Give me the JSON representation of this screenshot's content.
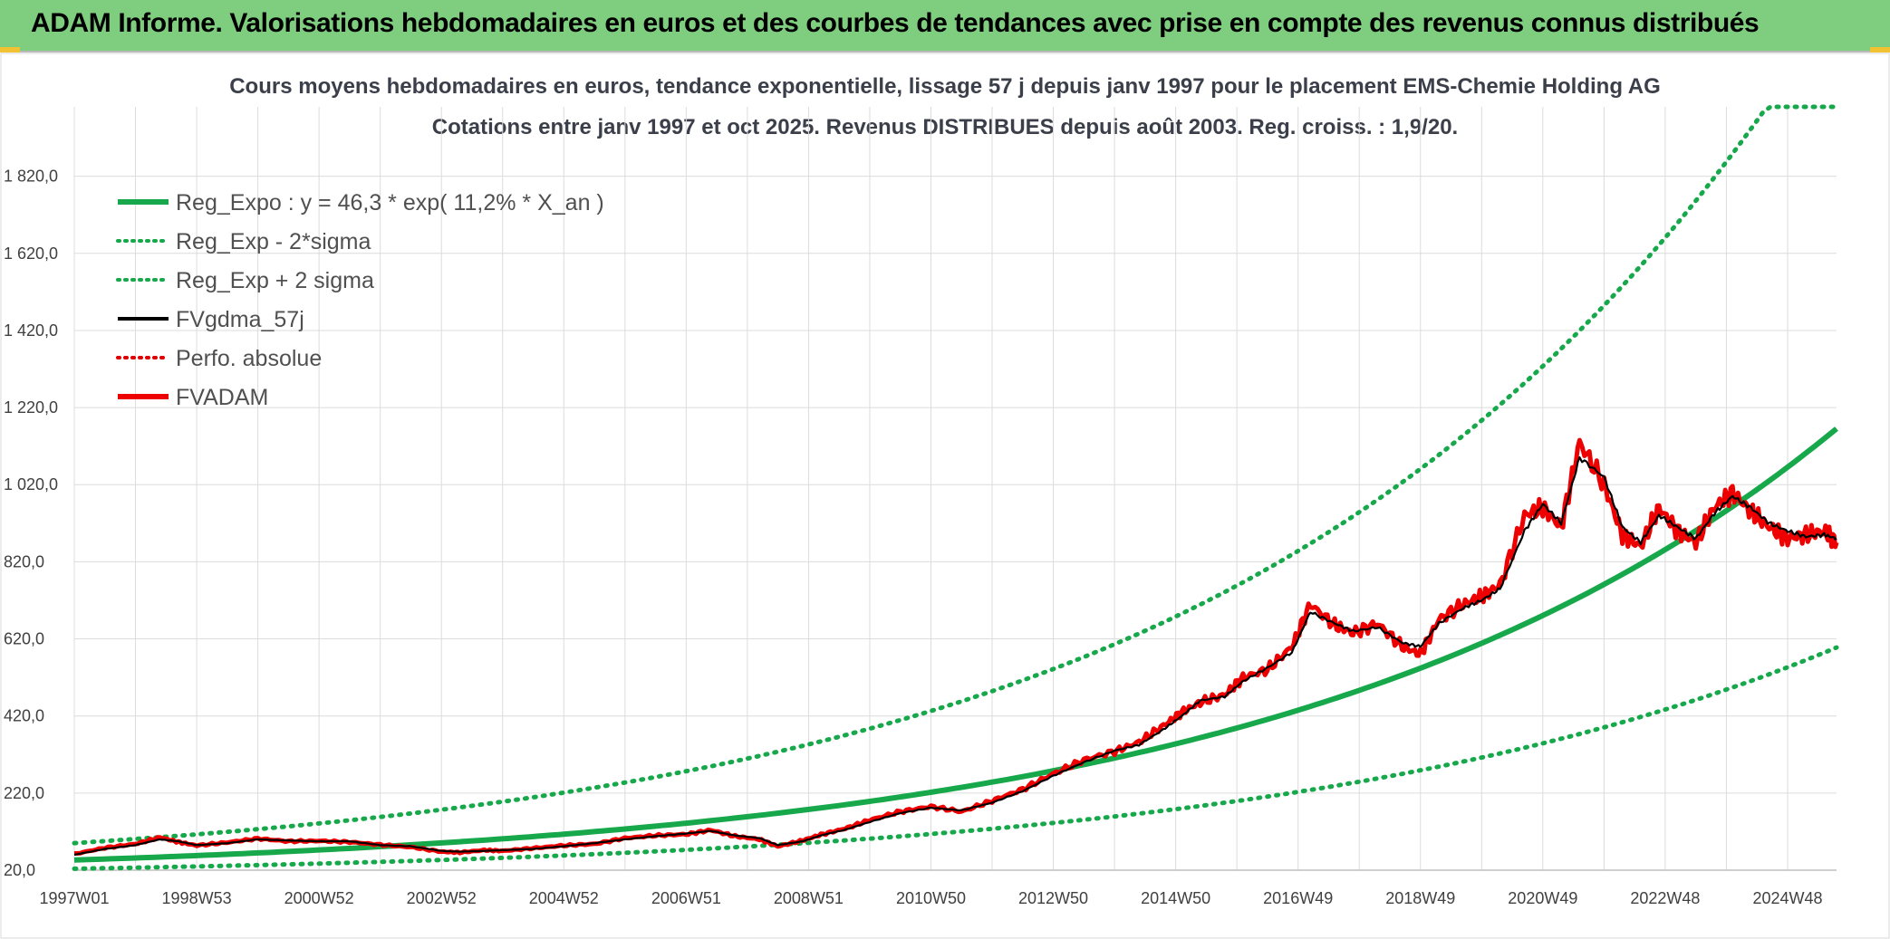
{
  "header": {
    "title": "ADAM Informe. Valorisations hebdomadaires en euros et des courbes de tendances avec prise en compte des revenus connus distribués"
  },
  "chart_data": {
    "type": "line",
    "title": "Cours moyens hebdomadaires en euros, tendance exponentielle, lissage 57 j depuis janv 1997 pour le placement EMS-Chemie Holding AG",
    "subtitle": "Cotations entre janv 1997 et oct 2025. Revenus DISTRIBUES depuis août 2003. Reg. croiss. : 1,9/20.",
    "xlabel": "",
    "ylabel": "",
    "x_range": [
      1997.0,
      2025.8
    ],
    "ylim": [
      20,
      2000
    ],
    "y_ticks": [
      "20,0",
      "220,0",
      "420,0",
      "620,0",
      "820,0",
      "1 020,0",
      "1 220,0",
      "1 420,0",
      "1 620,0",
      "1 820,0"
    ],
    "x_ticks": [
      {
        "label": "1997W01",
        "x": 1997.0
      },
      {
        "label": "1998W53",
        "x": 1999.0
      },
      {
        "label": "2000W52",
        "x": 2001.0
      },
      {
        "label": "2002W52",
        "x": 2003.0
      },
      {
        "label": "2004W52",
        "x": 2005.0
      },
      {
        "label": "2006W51",
        "x": 2007.0
      },
      {
        "label": "2008W51",
        "x": 2009.0
      },
      {
        "label": "2010W50",
        "x": 2011.0
      },
      {
        "label": "2012W50",
        "x": 2013.0
      },
      {
        "label": "2014W50",
        "x": 2015.0
      },
      {
        "label": "2016W49",
        "x": 2017.0
      },
      {
        "label": "2018W49",
        "x": 2019.0
      },
      {
        "label": "2020W49",
        "x": 2021.0
      },
      {
        "label": "2022W48",
        "x": 2023.0
      },
      {
        "label": "2024W48",
        "x": 2025.0
      }
    ],
    "grid": true,
    "legend_position": "top-left",
    "regression": {
      "a": 46.3,
      "rate": 0.112,
      "x0": 1997.0,
      "sigma_factor": 1.95
    },
    "series": [
      {
        "name": "Reg_Expo : y = 46,3 * exp( 11,2% *  X_an )",
        "color": "#17a84b",
        "style": "solid",
        "x": [
          1997.0,
          1998.0,
          1999.0,
          2000.0,
          2001.0,
          2002.0,
          2003.0,
          2004.0,
          2005.0,
          2006.0,
          2007.0,
          2008.0,
          2009.0,
          2010.0,
          2011.0,
          2012.0,
          2013.0,
          2014.0,
          2015.0,
          2016.0,
          2017.0,
          2018.0,
          2019.0,
          2020.0,
          2021.0,
          2022.0,
          2023.0,
          2024.0,
          2025.0,
          2025.8
        ],
        "values": [
          46.3,
          51.8,
          57.9,
          64.8,
          72.5,
          81.1,
          90.7,
          101.4,
          113.4,
          126.8,
          141.8,
          158.7,
          177.5,
          198.5,
          222.0,
          248.3,
          277.7,
          310.6,
          347.4,
          388.6,
          434.6,
          486.1,
          543.7,
          608.1,
          680.2,
          760.8,
          850.9,
          951.7,
          1064.5,
          1164.0
        ]
      },
      {
        "name": "Reg_Exp - 2*sigma",
        "color": "#17a84b",
        "style": "dotted",
        "x": [
          1997.0,
          1998.0,
          1999.0,
          2000.0,
          2001.0,
          2002.0,
          2003.0,
          2004.0,
          2005.0,
          2006.0,
          2007.0,
          2008.0,
          2009.0,
          2010.0,
          2011.0,
          2012.0,
          2013.0,
          2014.0,
          2015.0,
          2016.0,
          2017.0,
          2018.0,
          2019.0,
          2020.0,
          2021.0,
          2022.0,
          2023.0,
          2024.0,
          2025.0,
          2025.8
        ],
        "values": [
          23.7,
          26.6,
          29.7,
          33.2,
          37.2,
          41.6,
          46.5,
          52.0,
          58.2,
          65.0,
          72.7,
          81.4,
          91.0,
          101.8,
          113.8,
          127.3,
          142.4,
          159.3,
          178.2,
          199.3,
          222.9,
          249.3,
          278.8,
          311.8,
          348.8,
          390.2,
          436.4,
          488.0,
          545.9,
          597.0
        ]
      },
      {
        "name": "Reg_Exp + 2 sigma",
        "color": "#17a84b",
        "style": "dotted",
        "x": [
          1997.0,
          1998.0,
          1999.0,
          2000.0,
          2001.0,
          2002.0,
          2003.0,
          2004.0,
          2005.0,
          2006.0,
          2007.0,
          2008.0,
          2009.0,
          2010.0,
          2011.0,
          2012.0,
          2013.0,
          2014.0,
          2015.0,
          2016.0,
          2017.0,
          2018.0,
          2019.0,
          2020.0,
          2021.0,
          2022.0,
          2023.0,
          2024.0,
          2025.0,
          2025.8
        ],
        "values": [
          90.3,
          101.0,
          112.9,
          126.3,
          141.3,
          158.0,
          176.8,
          197.7,
          221.1,
          247.3,
          276.6,
          309.4,
          346.1,
          387.1,
          432.9,
          484.2,
          541.6,
          605.8,
          677.5,
          757.8,
          847.5,
          948.0,
          1060.3,
          1185.8,
          1326.3,
          1483.5,
          1659.3,
          1855.9,
          2000.0,
          2000.0
        ]
      },
      {
        "name": "FVgdma_57j",
        "color": "#000000",
        "style": "solid",
        "x": [
          1997.0,
          1997.5,
          1998.0,
          1998.4,
          1998.7,
          1999.0,
          1999.5,
          2000.0,
          2000.5,
          2001.0,
          2001.5,
          2002.0,
          2002.5,
          2003.0,
          2003.3,
          2003.7,
          2004.0,
          2004.5,
          2005.0,
          2005.5,
          2006.0,
          2006.5,
          2007.0,
          2007.4,
          2007.8,
          2008.2,
          2008.5,
          2008.9,
          2009.2,
          2009.6,
          2010.0,
          2010.5,
          2011.0,
          2011.5,
          2012.0,
          2012.5,
          2013.0,
          2013.5,
          2014.0,
          2014.4,
          2014.8,
          2015.1,
          2015.4,
          2015.8,
          2016.1,
          2016.5,
          2016.9,
          2017.2,
          2017.6,
          2017.9,
          2018.3,
          2018.7,
          2019.0,
          2019.3,
          2019.7,
          2020.0,
          2020.3,
          2020.7,
          2021.0,
          2021.3,
          2021.6,
          2022.0,
          2022.3,
          2022.6,
          2022.9,
          2023.2,
          2023.5,
          2023.8,
          2024.1,
          2024.4,
          2024.7,
          2025.0,
          2025.3,
          2025.6,
          2025.8
        ],
        "values": [
          60,
          75,
          85,
          100,
          95,
          85,
          90,
          100,
          97,
          95,
          95,
          85,
          82,
          70,
          68,
          70,
          72,
          75,
          82,
          90,
          100,
          108,
          115,
          122,
          110,
          103,
          85,
          95,
          110,
          125,
          145,
          168,
          182,
          175,
          195,
          225,
          265,
          300,
          330,
          345,
          385,
          420,
          460,
          470,
          510,
          545,
          585,
          690,
          660,
          640,
          650,
          610,
          600,
          660,
          700,
          720,
          750,
          900,
          970,
          920,
          1090,
          1040,
          910,
          870,
          940,
          910,
          880,
          945,
          990,
          960,
          920,
          900,
          885,
          890,
          880
        ]
      },
      {
        "name": "Perfo. absolue",
        "color": "#e00000",
        "style": "dotted",
        "x": [],
        "values": []
      },
      {
        "name": "FVADAM",
        "color": "#ee0000",
        "style": "solid",
        "x": [
          1997.0,
          1997.5,
          1998.0,
          1998.4,
          1998.7,
          1999.0,
          1999.5,
          2000.0,
          2000.5,
          2001.0,
          2001.5,
          2002.0,
          2002.5,
          2003.0,
          2003.3,
          2003.7,
          2004.0,
          2004.5,
          2005.0,
          2005.5,
          2006.0,
          2006.5,
          2007.0,
          2007.4,
          2007.8,
          2008.2,
          2008.5,
          2008.9,
          2009.2,
          2009.6,
          2010.0,
          2010.5,
          2011.0,
          2011.5,
          2012.0,
          2012.5,
          2013.0,
          2013.5,
          2014.0,
          2014.4,
          2014.8,
          2015.1,
          2015.4,
          2015.8,
          2016.1,
          2016.5,
          2016.9,
          2017.2,
          2017.6,
          2017.9,
          2018.3,
          2018.7,
          2019.0,
          2019.3,
          2019.7,
          2020.0,
          2020.3,
          2020.7,
          2021.0,
          2021.3,
          2021.6,
          2022.0,
          2022.3,
          2022.6,
          2022.9,
          2023.2,
          2023.5,
          2023.8,
          2024.1,
          2024.4,
          2024.7,
          2025.0,
          2025.3,
          2025.6,
          2025.8
        ],
        "values": [
          62,
          78,
          88,
          105,
          93,
          84,
          92,
          102,
          95,
          96,
          93,
          86,
          80,
          68,
          66,
          72,
          70,
          77,
          84,
          88,
          103,
          110,
          113,
          124,
          108,
          100,
          82,
          97,
          112,
          128,
          150,
          172,
          185,
          172,
          200,
          230,
          270,
          306,
          328,
          352,
          395,
          430,
          455,
          475,
          520,
          540,
          600,
          710,
          655,
          635,
          660,
          600,
          580,
          670,
          710,
          730,
          760,
          940,
          960,
          910,
          1130,
          1020,
          890,
          860,
          960,
          900,
          870,
          960,
          1000,
          950,
          910,
          880,
          890,
          900,
          870
        ]
      }
    ]
  }
}
